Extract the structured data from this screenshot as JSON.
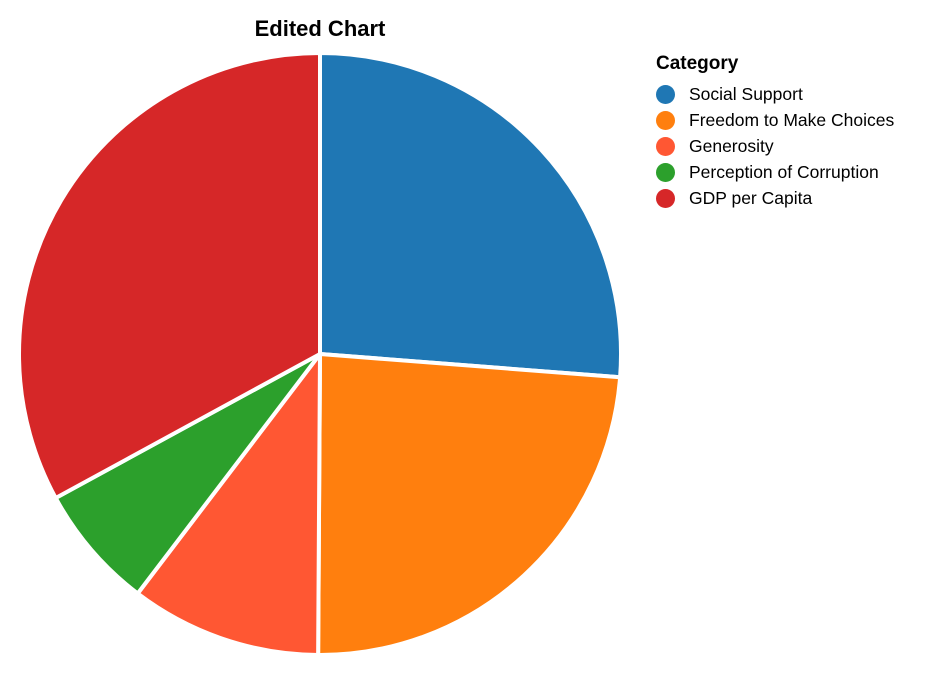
{
  "chart_data": {
    "type": "pie",
    "title": "Edited Chart",
    "legend": {
      "title": "Category",
      "placement": "top-right"
    },
    "slices": [
      {
        "label": "Social Support",
        "value": 1.33,
        "color": "#1f77b4"
      },
      {
        "label": "Freedom to Make Choices",
        "value": 1.21,
        "color": "#ff7f0e"
      },
      {
        "label": "Generosity",
        "value": 0.52,
        "color": "#ff5733"
      },
      {
        "label": "Perception of Corruption",
        "value": 0.34,
        "color": "#2ca02c"
      },
      {
        "label": "GDP per Capita",
        "value": 1.67,
        "color": "#d62728"
      }
    ]
  }
}
